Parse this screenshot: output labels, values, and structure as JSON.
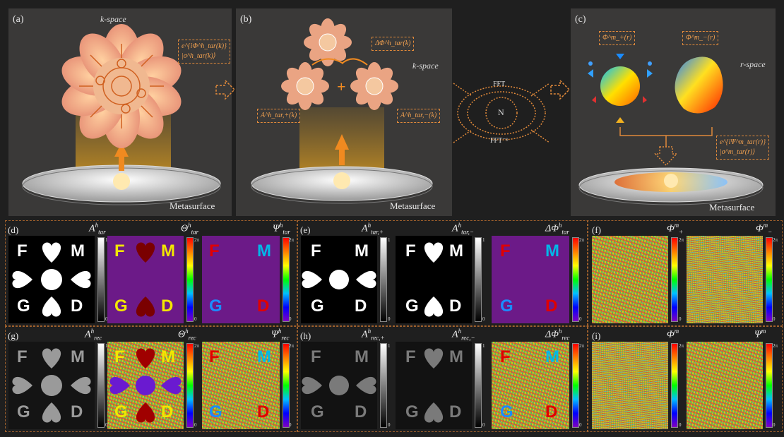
{
  "panels_top": {
    "a": {
      "label": "(a)",
      "space": "k-space",
      "box_line1": "e^{iΦ^h_tar(k)}",
      "box_line2": "|σ^h_tar(k)⟩",
      "surface": "Metasurface"
    },
    "b": {
      "label": "(b)",
      "space": "k-space",
      "box_top": "ΔΦ^h_tar(k)",
      "box_left": "A^h_tar,+(k)",
      "box_right": "A^h_tar,−(k)",
      "plus": "+",
      "surface": "Metasurface"
    },
    "mid": {
      "fft": "FFT",
      "ifft": "FFT⁻¹",
      "node": "N"
    },
    "c": {
      "label": "(c)",
      "space": "r-space",
      "box_left": "Φ^m_+(r)",
      "box_right": "Φ^m_−(r)",
      "box_line1": "e^{iΨ^m_tar(r)}",
      "box_line2": "|σ^m_tar(r)⟩",
      "surface": "Metasurface"
    }
  },
  "panels_bottom": {
    "d": {
      "label": "(d)",
      "t1": "A",
      "t1sup": "h",
      "t1sub": "tar",
      "t2": "Θ",
      "t2sup": "h",
      "t2sub": "tar",
      "t3": "Ψ",
      "t3sup": "h",
      "t3sub": "tar"
    },
    "e": {
      "label": "(e)",
      "t1": "A",
      "t1sup": "h",
      "t1sub": "tar,+",
      "t2": "A",
      "t2sup": "h",
      "t2sub": "tar,−",
      "t3": "ΔΦ",
      "t3sup": "h",
      "t3sub": "tar"
    },
    "f": {
      "label": "(f)",
      "t1": "Φ",
      "t1sup": "m",
      "t1sub": "+",
      "t2": "Φ",
      "t2sup": "m",
      "t2sub": "−"
    },
    "g": {
      "label": "(g)",
      "t1": "A",
      "t1sup": "h",
      "t1sub": "rec",
      "t2": "Θ",
      "t2sup": "h",
      "t2sub": "rec",
      "t3": "Ψ",
      "t3sup": "h",
      "t3sub": "rec"
    },
    "h": {
      "label": "(h)",
      "t1": "A",
      "t1sup": "h",
      "t1sub": "rec,+",
      "t2": "A",
      "t2sup": "h",
      "t2sub": "rec,−",
      "t3": "ΔΦ",
      "t3sup": "h",
      "t3sub": "rec"
    },
    "i": {
      "label": "(i)",
      "t1": "Φ",
      "t1sup": "m",
      "t1sub": "",
      "t2": "Ψ",
      "t2sup": "m",
      "t2sub": ""
    }
  },
  "letters": {
    "F": "F",
    "M": "M",
    "G": "G",
    "D": "D"
  },
  "colorbar": {
    "gray_top": "1",
    "gray_bottom": "0",
    "phase_top": "2π",
    "phase_bottom": "0"
  },
  "colors": {
    "panel_bg": "#3a3938",
    "accent": "#e0893a",
    "purple": "#6c1a88",
    "yellow": "#f2e600",
    "red": "#e00000",
    "cyan": "#00b8e8",
    "blue": "#1a8cff",
    "darkred": "#7a0000"
  }
}
